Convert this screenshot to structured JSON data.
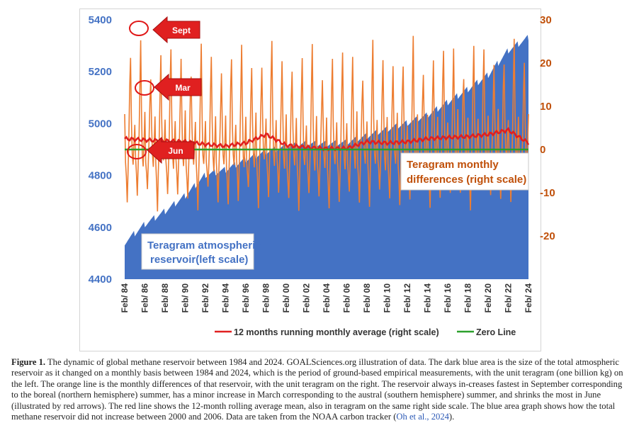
{
  "chart_data": {
    "type": "area",
    "title": "",
    "left_axis": {
      "ticks": [
        4400,
        4600,
        4800,
        5000,
        5200,
        5400
      ],
      "range": [
        4400,
        5400
      ]
    },
    "right_axis": {
      "ticks": [
        -20,
        -10,
        0,
        10,
        20,
        30
      ],
      "range": [
        -30,
        30
      ]
    },
    "x_tick_labels": [
      "Feb/ 84",
      "Feb/ 86",
      "Feb/ 88",
      "Feb/ 90",
      "Feb/ 92",
      "Feb/ 94",
      "Feb/ 96",
      "Feb/ 98",
      "Feb/ 00",
      "Feb/ 02",
      "Feb/ 04",
      "Feb/ 06",
      "Feb/ 08",
      "Feb/ 10",
      "Feb/ 12",
      "Feb/ 14",
      "Feb/ 16",
      "Feb/ 18",
      "Feb/ 20",
      "Feb/ 22",
      "Feb/ 24"
    ],
    "series": [
      {
        "name": "Teragram atmospheric reservoir(left scale)",
        "axis": "left",
        "color": "#4472c4",
        "style": "area",
        "x": [
          1984,
          1986,
          1988,
          1990,
          1992,
          1994,
          1996,
          1998,
          2000,
          2002,
          2004,
          2006,
          2008,
          2010,
          2012,
          2014,
          2016,
          2018,
          2020,
          2022,
          2024
        ],
        "values": [
          4540,
          4610,
          4660,
          4720,
          4800,
          4820,
          4860,
          4890,
          4910,
          4920,
          4920,
          4925,
          4950,
          4975,
          5000,
          5030,
          5080,
          5130,
          5185,
          5280,
          5330
        ]
      },
      {
        "name": "Teragram monthly differences (right scale)",
        "axis": "right",
        "color": "#ed7d31",
        "style": "line",
        "cycle": {
          "sept_peak": 24,
          "mar_bump": 8,
          "jun_trough": -14
        },
        "x": [
          1984,
          2024
        ]
      },
      {
        "name": "12 months running monthly average (right scale)",
        "axis": "right",
        "color": "#e02020",
        "style": "line",
        "x": [
          1984,
          1986,
          1988,
          1990,
          1992,
          1994,
          1996,
          1998,
          2000,
          2002,
          2004,
          2006,
          2008,
          2010,
          2012,
          2014,
          2016,
          2018,
          2020,
          2022,
          2024
        ],
        "values": [
          2.5,
          2.2,
          2.0,
          1.8,
          1.2,
          0.8,
          1.5,
          3.5,
          1.0,
          0.5,
          0.2,
          0.3,
          1.8,
          1.5,
          1.8,
          2.5,
          2.8,
          3.0,
          3.5,
          4.5,
          1.5
        ]
      },
      {
        "name": "Zero Line",
        "axis": "right",
        "color": "#2ca02c",
        "style": "line",
        "values": [
          0,
          0
        ]
      }
    ],
    "annotations": [
      {
        "label": "Sept",
        "target": "sept-peak"
      },
      {
        "label": "Mar",
        "target": "mar-bump"
      },
      {
        "label": "Jun",
        "target": "jun-trough"
      }
    ],
    "callouts": {
      "reservoir_line1": "Teragram atmospheric",
      "reservoir_line2": "reservoir(left scale)",
      "diff_line1": "Teragram monthly",
      "diff_line2": "differences (right scale)"
    },
    "legend": [
      {
        "label": "12 months running monthly average (right scale)",
        "color": "#e02020"
      },
      {
        "label": "Zero Line",
        "color": "#2ca02c"
      }
    ],
    "legend_position": "bottom",
    "grid": false
  },
  "caption": {
    "label": "Figure 1.",
    "text": " The dynamic of global methane reservoir between 1984 and 2024. GOALSciences.org illustration of data. The dark blue area is the size of the total atmospheric reservoir as it changed on a monthly basis between 1984 and 2024, which is the period of ground-based empirical measurements, with the unit teragram (one billion kg) on the left. The orange line is the monthly differences of that reservoir, with the unit teragram on the right. The reservoir always in-creases fastest in September corresponding to the boreal (northern hemisphere) summer, has a minor increase in March corresponding to the austral (southern hemisphere) summer, and shrinks the most in June (illustrated by red arrows). The red line shows the 12-month rolling average mean, also in teragram on the same right side scale. The blue area graph shows how the total methane reservoir did not increase between 2000 and 2006. Data are taken from the NOAA carbon tracker (",
    "link": "Oh et al., 2024",
    "end": ")."
  }
}
